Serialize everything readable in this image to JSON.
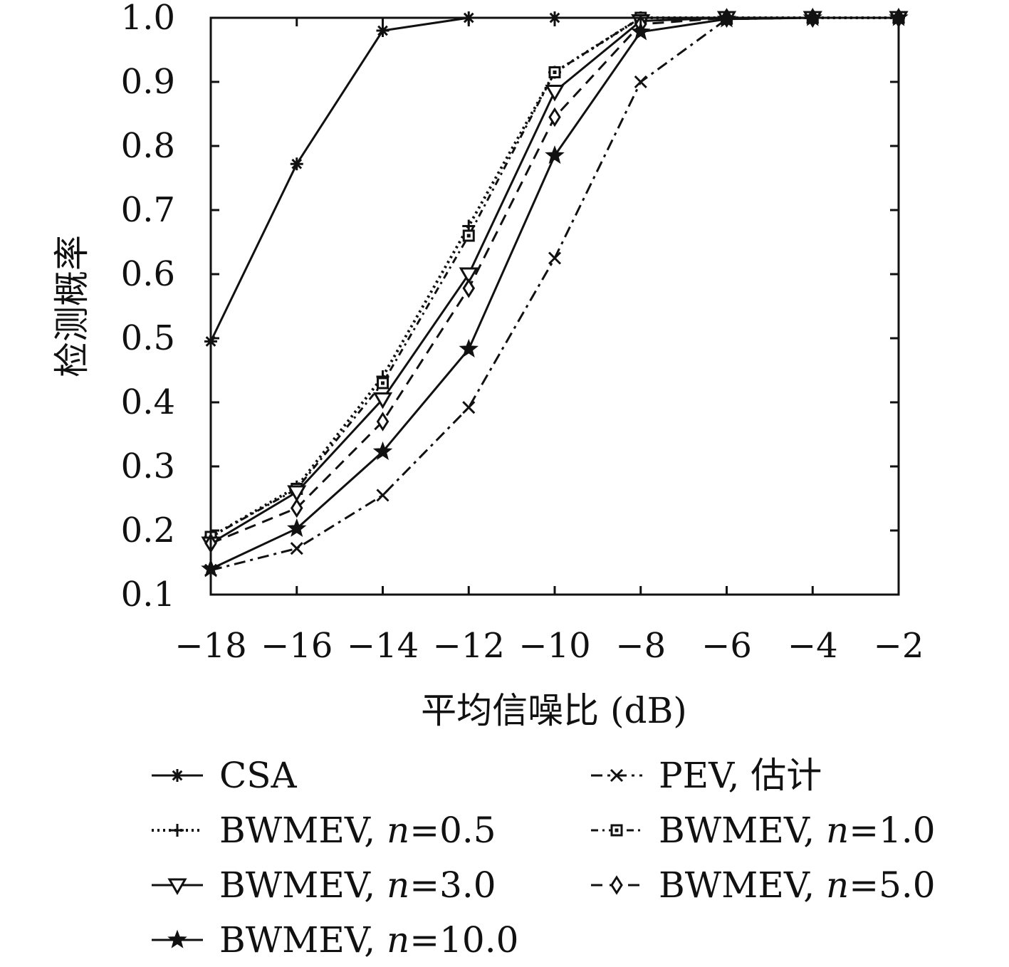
{
  "chart_data": {
    "type": "line",
    "xlabel": "平均信噪比 (dB)",
    "ylabel": "检测概率",
    "x": [
      -18,
      -16,
      -14,
      -12,
      -10,
      -8,
      -6,
      -4,
      -2
    ],
    "xticks": [
      "−18",
      "−16",
      "−14",
      "−12",
      "−10",
      "−8",
      "−6",
      "−4",
      "−2"
    ],
    "yticks": [
      "0.1",
      "0.2",
      "0.3",
      "0.4",
      "0.5",
      "0.6",
      "0.7",
      "0.8",
      "0.9",
      "1.0"
    ],
    "xlim": [
      -18,
      -2
    ],
    "ylim": [
      0.1,
      1.0
    ],
    "grid": false,
    "legend_position": "bottom",
    "series": [
      {
        "name": "CSA",
        "style": "solid",
        "marker": "asterisk",
        "values": [
          0.495,
          0.772,
          0.98,
          1.0,
          1.0,
          1.0,
          1.0,
          1.0,
          1.0
        ]
      },
      {
        "name": "PEV, 估计",
        "style": "dashdot",
        "marker": "x",
        "values": [
          0.138,
          0.172,
          0.255,
          0.392,
          0.625,
          0.9,
          0.998,
          1.0,
          1.0
        ]
      },
      {
        "name": "BWMEV, n=0.5",
        "style": "dotted",
        "marker": "plus",
        "values": [
          0.19,
          0.268,
          0.44,
          0.675,
          0.915,
          1.0,
          1.0,
          1.0,
          1.0
        ]
      },
      {
        "name": "BWMEV, n=1.0",
        "style": "dashdotted2",
        "marker": "square",
        "values": [
          0.19,
          0.265,
          0.43,
          0.66,
          0.915,
          1.0,
          1.0,
          1.0,
          1.0
        ]
      },
      {
        "name": "BWMEV, n=3.0",
        "style": "solid",
        "marker": "triangle-down",
        "values": [
          0.18,
          0.26,
          0.405,
          0.6,
          0.885,
          0.995,
          1.0,
          1.0,
          1.0
        ]
      },
      {
        "name": "BWMEV, n=5.0",
        "style": "dashed",
        "marker": "diamond",
        "values": [
          0.18,
          0.235,
          0.37,
          0.578,
          0.845,
          0.99,
          1.0,
          1.0,
          1.0
        ]
      },
      {
        "name": "BWMEV, n=10.0",
        "style": "solid",
        "marker": "star",
        "values": [
          0.14,
          0.203,
          0.323,
          0.483,
          0.785,
          0.978,
          0.998,
          1.0,
          1.0
        ]
      }
    ],
    "legend": [
      {
        "name": "CSA",
        "label": "CSA",
        "n": ""
      },
      {
        "name": "PEV, 估计",
        "label": "PEV, 估计",
        "n": ""
      },
      {
        "name": "BWMEV, n=0.5",
        "label": "BWMEV, ",
        "n": "n",
        "suffix": "=0.5"
      },
      {
        "name": "BWMEV, n=1.0",
        "label": "BWMEV, ",
        "n": "n",
        "suffix": "=1.0"
      },
      {
        "name": "BWMEV, n=3.0",
        "label": "BWMEV, ",
        "n": "n",
        "suffix": "=3.0"
      },
      {
        "name": "BWMEV, n=5.0",
        "label": "BWMEV, ",
        "n": "n",
        "suffix": "=5.0"
      },
      {
        "name": "BWMEV, n=10.0",
        "label": "BWMEV, ",
        "n": "n",
        "suffix": "=10.0"
      }
    ],
    "color": "#111111"
  }
}
